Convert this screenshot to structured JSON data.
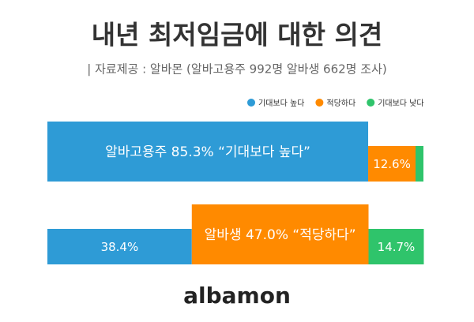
{
  "chart_data": {
    "type": "stacked-barh",
    "title": "내년 최저임금에 대한 의견",
    "subtitle": "| 자료제공 : 알바몬 (알바고용주 992명 알바생 662명 조사)",
    "categories": [
      null,
      null
    ],
    "xlim": [
      0,
      100
    ],
    "legend": "top-right",
    "series": [
      {
        "name": "기대보다 높다",
        "color": "#2e9bd6",
        "values": [
          85.3,
          38.4
        ],
        "value_labels": [
          "알바고용주 85.3% “기대보다 높다”",
          "38.4%"
        ]
      },
      {
        "name": "적당하다",
        "color": "#ff8a00",
        "values": [
          12.6,
          47.0
        ],
        "value_labels": [
          "12.6%",
          "알바생 47.0% “적당하다”"
        ]
      },
      {
        "name": "기대보다 낮다",
        "color": "#2fc46b",
        "values": [
          2.1,
          14.7
        ],
        "value_labels": [
          null,
          "14.7%"
        ]
      }
    ],
    "logo": "albamon"
  }
}
